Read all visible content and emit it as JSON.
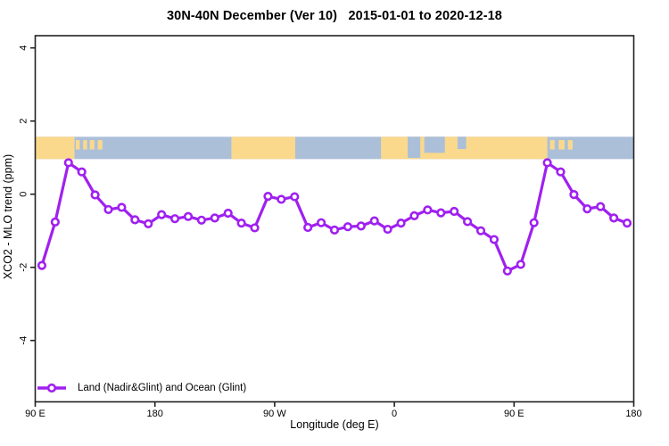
{
  "title": "30N-40N December (Ver 10)   2015-01-01 to 2020-12-18",
  "axes": {
    "x_title": "Longitude (deg E)",
    "y_title": "XCO2 - MLO trend (ppm)"
  },
  "legend": {
    "label": "Land (Nadir&Glint) and Ocean (Glint)"
  },
  "colors": {
    "series": "#A020F0",
    "marker_fill": "#ffffff",
    "ocean": "#ABBFD9",
    "land": "#FAD98C",
    "axis": "#222222",
    "text": "#000000"
  },
  "chart_data": {
    "type": "line",
    "title": "30N-40N December (Ver 10)   2015-01-01 to 2020-12-18",
    "xlabel": "Longitude (deg E)",
    "ylabel": "XCO2 - MLO trend (ppm)",
    "legend_position": "bottom-left",
    "grid": false,
    "x_axis": {
      "note": "axis spans 450 degrees of longitude starting at 90E and wrapping east to 180",
      "span_deg": 450,
      "tick_positions_deg": [
        0,
        90,
        180,
        270,
        360,
        450
      ],
      "tick_labels": [
        "90 E",
        "180",
        "90 W",
        "0",
        "90 E",
        "180"
      ]
    },
    "y_axis": {
      "tick_values": [
        4,
        2,
        0,
        -2,
        -4
      ],
      "tick_labels": [
        "4",
        "2",
        "0",
        "-2",
        "-4"
      ],
      "range": [
        -5.7,
        4.35
      ]
    },
    "series": [
      {
        "name": "Land (Nadir&Glint) and Ocean (Glint)",
        "marker": "open-circle",
        "x_deg_along_axis": [
          5,
          15,
          25,
          35,
          45,
          55,
          65,
          75,
          85,
          95,
          105,
          115,
          125,
          135,
          145,
          155,
          165,
          175,
          185,
          195,
          205,
          215,
          225,
          235,
          245,
          255,
          265,
          275,
          285,
          295,
          305,
          315,
          325,
          335,
          345,
          355,
          365,
          375,
          385,
          395,
          405,
          415,
          425,
          435,
          445
        ],
        "values": [
          -1.95,
          -0.76,
          0.86,
          0.61,
          -0.02,
          -0.42,
          -0.36,
          -0.7,
          -0.81,
          -0.56,
          -0.67,
          -0.61,
          -0.71,
          -0.65,
          -0.52,
          -0.79,
          -0.92,
          -0.06,
          -0.14,
          -0.07,
          -0.91,
          -0.78,
          -0.98,
          -0.89,
          -0.87,
          -0.73,
          -0.96,
          -0.79,
          -0.59,
          -0.43,
          -0.51,
          -0.47,
          -0.75,
          -1.0,
          -1.24,
          -2.1,
          -1.92,
          -0.78,
          0.86,
          0.61,
          -0.01,
          -0.4,
          -0.34,
          -0.65,
          -0.79
        ]
      }
    ],
    "map_band": {
      "note": "world map strip of the 30N-40N latitude band drawn across the plot",
      "value_top": 1.57,
      "value_bottom": 0.96,
      "land_segments_deg": [
        [
          0,
          29.5
        ],
        [
          147.5,
          195.5
        ],
        [
          260,
          385
        ]
      ],
      "island_segments_deg": [
        [
          30.5,
          33.5
        ],
        [
          36,
          39
        ],
        [
          41,
          44.5
        ],
        [
          47,
          50.5
        ],
        [
          387,
          390.5
        ],
        [
          393.5,
          398
        ],
        [
          400.5,
          404
        ]
      ],
      "sea_patch_segments_deg": [
        {
          "from": 280,
          "to": 289.5,
          "depth_frac": 0.95
        },
        {
          "from": 292.5,
          "to": 308,
          "depth_frac": 0.72
        },
        {
          "from": 317.5,
          "to": 324,
          "depth_frac": 0.55
        }
      ]
    }
  }
}
